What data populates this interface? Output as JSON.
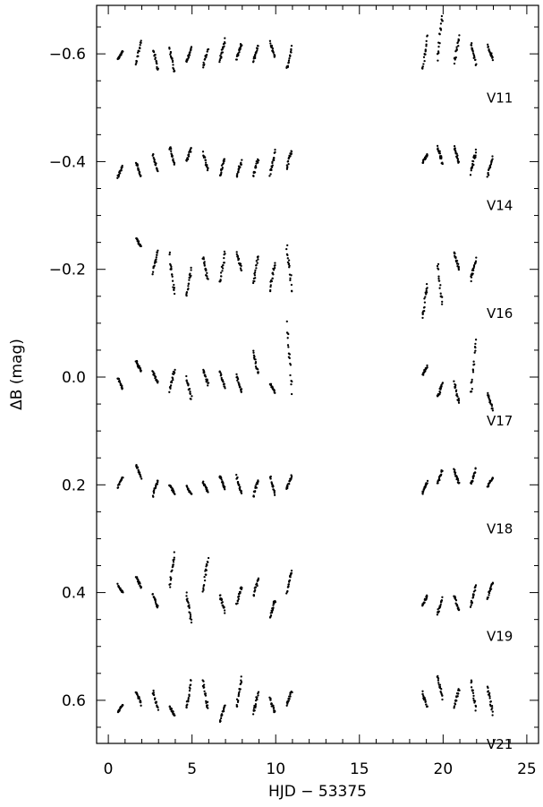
{
  "chart_data": {
    "type": "scatter",
    "xlabel": "HJD − 53375",
    "ylabel": "ΔB (mag)",
    "xlim": [
      -0.7,
      25.7
    ],
    "ylim": [
      0.68,
      -0.69
    ],
    "y_inverted": true,
    "grid": false,
    "x_ticks": [
      0,
      5,
      10,
      15,
      20,
      25
    ],
    "x_tick_labels": [
      "0",
      "5",
      "10",
      "15",
      "20",
      "25"
    ],
    "y_ticks": [
      -0.6,
      -0.4,
      -0.2,
      0.0,
      0.2,
      0.4,
      0.6
    ],
    "y_tick_labels": [
      "−0.6",
      "−0.4",
      "−0.2",
      "0.0",
      "0.2",
      "0.4",
      "0.6"
    ],
    "series": [
      {
        "name": "V11",
        "label_pos": [
          22.6,
          -0.51
        ],
        "x": [
          0.7,
          1.8,
          2.8,
          3.8,
          4.8,
          5.8,
          6.8,
          7.8,
          8.8,
          9.8,
          10.8,
          18.9,
          19.8,
          20.8,
          21.8,
          22.8
        ],
        "y": [
          -0.597,
          -0.603,
          -0.59,
          -0.587,
          -0.598,
          -0.593,
          -0.605,
          -0.605,
          -0.6,
          -0.608,
          -0.59,
          -0.6,
          -0.63,
          -0.608,
          -0.6,
          -0.603
        ],
        "amp": [
          0.008,
          0.02,
          0.02,
          0.02,
          0.016,
          0.016,
          0.02,
          0.014,
          0.014,
          0.014,
          0.02,
          0.03,
          0.04,
          0.024,
          0.02,
          0.012
        ]
      },
      {
        "name": "V14",
        "label_pos": [
          22.6,
          -0.31
        ],
        "x": [
          0.7,
          1.8,
          2.8,
          3.8,
          4.8,
          5.8,
          6.8,
          7.8,
          8.8,
          9.8,
          10.8,
          18.9,
          19.8,
          20.8,
          21.8,
          22.8
        ],
        "y": [
          -0.381,
          -0.385,
          -0.398,
          -0.41,
          -0.413,
          -0.4,
          -0.39,
          -0.387,
          -0.39,
          -0.397,
          -0.405,
          -0.405,
          -0.413,
          -0.413,
          -0.4,
          -0.39
        ],
        "amp": [
          0.01,
          0.012,
          0.016,
          0.018,
          0.012,
          0.016,
          0.016,
          0.014,
          0.016,
          0.02,
          0.018,
          0.008,
          0.016,
          0.016,
          0.02,
          0.016
        ]
      },
      {
        "name": "V16",
        "label_pos": [
          22.6,
          -0.11
        ],
        "x": [
          1.8,
          2.8,
          3.8,
          4.8,
          5.8,
          6.8,
          7.8,
          8.8,
          9.8,
          10.8,
          18.9,
          19.8,
          20.8,
          21.8
        ],
        "y": [
          -0.25,
          -0.215,
          -0.19,
          -0.175,
          -0.2,
          -0.2,
          -0.215,
          -0.2,
          -0.188,
          -0.205,
          -0.14,
          -0.17,
          -0.215,
          -0.2
        ],
        "amp": [
          0.008,
          0.02,
          0.035,
          0.025,
          0.02,
          0.03,
          0.016,
          0.025,
          0.025,
          0.04,
          0.03,
          0.04,
          0.016,
          0.02
        ]
      },
      {
        "name": "V17",
        "label_pos": [
          22.6,
          0.09
        ],
        "x": [
          0.7,
          1.8,
          2.8,
          3.8,
          4.8,
          5.8,
          6.8,
          7.8,
          8.8,
          9.8,
          10.8,
          18.9,
          19.8,
          20.8,
          21.8,
          22.8
        ],
        "y": [
          0.012,
          -0.02,
          0.0,
          0.005,
          0.02,
          0.0,
          0.005,
          0.012,
          -0.025,
          0.02,
          -0.035,
          -0.012,
          0.025,
          0.03,
          -0.02,
          0.045
        ],
        "amp": [
          0.01,
          0.01,
          0.01,
          0.02,
          0.02,
          0.014,
          0.014,
          0.014,
          0.02,
          0.008,
          0.06,
          0.008,
          0.014,
          0.02,
          0.05,
          0.014
        ]
      },
      {
        "name": "V18",
        "label_pos": [
          22.6,
          0.29
        ],
        "x": [
          0.7,
          1.8,
          2.8,
          3.8,
          4.8,
          5.8,
          6.8,
          7.8,
          8.8,
          9.8,
          10.8,
          18.9,
          19.8,
          20.8,
          21.8,
          22.8
        ],
        "y": [
          0.195,
          0.175,
          0.205,
          0.208,
          0.21,
          0.205,
          0.195,
          0.2,
          0.205,
          0.2,
          0.195,
          0.205,
          0.185,
          0.185,
          0.185,
          0.195
        ],
        "amp": [
          0.01,
          0.012,
          0.014,
          0.008,
          0.008,
          0.01,
          0.012,
          0.016,
          0.016,
          0.016,
          0.012,
          0.01,
          0.012,
          0.012,
          0.014,
          0.008
        ]
      },
      {
        "name": "V19",
        "label_pos": [
          22.6,
          0.49
        ],
        "x": [
          0.7,
          1.8,
          2.8,
          3.8,
          4.8,
          5.8,
          6.8,
          7.8,
          8.8,
          9.8,
          10.8,
          18.9,
          19.8,
          20.8,
          21.8,
          22.8
        ],
        "y": [
          0.393,
          0.38,
          0.415,
          0.36,
          0.43,
          0.365,
          0.42,
          0.405,
          0.39,
          0.43,
          0.38,
          0.415,
          0.425,
          0.42,
          0.405,
          0.395
        ],
        "amp": [
          0.008,
          0.01,
          0.012,
          0.03,
          0.025,
          0.03,
          0.015,
          0.015,
          0.015,
          0.015,
          0.02,
          0.01,
          0.015,
          0.015,
          0.02,
          0.014
        ]
      },
      {
        "name": "V21",
        "label_pos": [
          22.6,
          0.69
        ],
        "x": [
          0.7,
          1.8,
          2.8,
          3.8,
          4.8,
          5.8,
          6.8,
          7.8,
          8.8,
          9.8,
          10.8,
          18.9,
          19.8,
          20.8,
          21.8,
          22.8
        ],
        "y": [
          0.615,
          0.595,
          0.6,
          0.62,
          0.59,
          0.59,
          0.625,
          0.585,
          0.605,
          0.61,
          0.595,
          0.6,
          0.575,
          0.595,
          0.59,
          0.6
        ],
        "amp": [
          0.008,
          0.012,
          0.016,
          0.008,
          0.025,
          0.025,
          0.015,
          0.025,
          0.02,
          0.014,
          0.012,
          0.014,
          0.02,
          0.016,
          0.025,
          0.025
        ]
      }
    ]
  }
}
